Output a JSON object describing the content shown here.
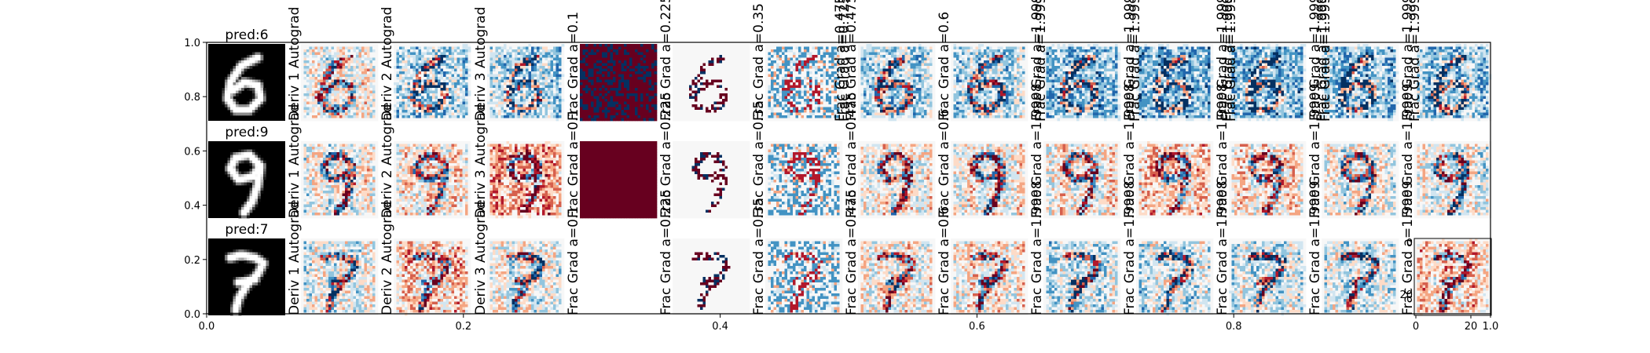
{
  "chart_data": {
    "type": "heatmap",
    "title": "",
    "xlabel": "",
    "ylabel": "",
    "xlim": [
      0.0,
      1.0
    ],
    "ylim": [
      0.0,
      1.0
    ],
    "x_ticks": [
      "0.0",
      "0.2",
      "0.4",
      "0.6",
      "0.8",
      "1.0"
    ],
    "y_ticks": [
      "0.0",
      "0.2",
      "0.4",
      "0.6",
      "0.8",
      "1.0"
    ],
    "inset_x_ticks": [
      "0",
      "20"
    ],
    "inset_y_ticks": [
      "0",
      "20"
    ],
    "rows": [
      {
        "prediction": "pred:6",
        "digit": "6"
      },
      {
        "prediction": "pred:9",
        "digit": "9"
      },
      {
        "prediction": "pred:7",
        "digit": "7"
      }
    ],
    "columns": [
      {
        "label": "Deriv 1 Autograd",
        "pattern": "smooth"
      },
      {
        "label": "Deriv 2 Autograd",
        "pattern": "smooth"
      },
      {
        "label": "Deriv 3 Autograd",
        "pattern": "smooth"
      },
      {
        "label": "Frac Grad a=0.1",
        "pattern": "saturated"
      },
      {
        "label": "Frac Grad a=0.225",
        "pattern": "sparse"
      },
      {
        "label": "Frac Grad a=0.35",
        "pattern": "quantized"
      },
      {
        "label": "Frac Grad a=0.475",
        "pattern": "smooth"
      },
      {
        "label": "Frac Grad a=0.6",
        "pattern": "smooth"
      },
      {
        "label": "Frac Grad a=1.9998",
        "pattern": "smooth"
      },
      {
        "label": "Frac Grad a=1.9998",
        "pattern": "smooth"
      },
      {
        "label": "Frac Grad a=1.9998",
        "pattern": "smooth"
      },
      {
        "label": "Frac Grad a=1.9999",
        "pattern": "smooth"
      },
      {
        "label": "Frac Grad a=1.9999",
        "pattern": "smooth"
      }
    ],
    "overlay_labels": [
      "Frac Grad a=0.475",
      "Frac Grad a=0.725",
      "Frac Grad a=1.99975",
      "Frac Grad a=1.99976",
      "Frac Grad a=1.99985",
      "Frac Grad a=1.99986",
      "Frac Grad a=1.99995",
      "Frac Grad a=1.99996",
      "Frac Grad a=1.99999"
    ],
    "colormap": [
      "#053061",
      "#2166ac",
      "#4393c3",
      "#92c5de",
      "#d1e5f0",
      "#f7f7f7",
      "#fddbc7",
      "#f4a582",
      "#d6604d",
      "#b2182b",
      "#67001f"
    ]
  }
}
